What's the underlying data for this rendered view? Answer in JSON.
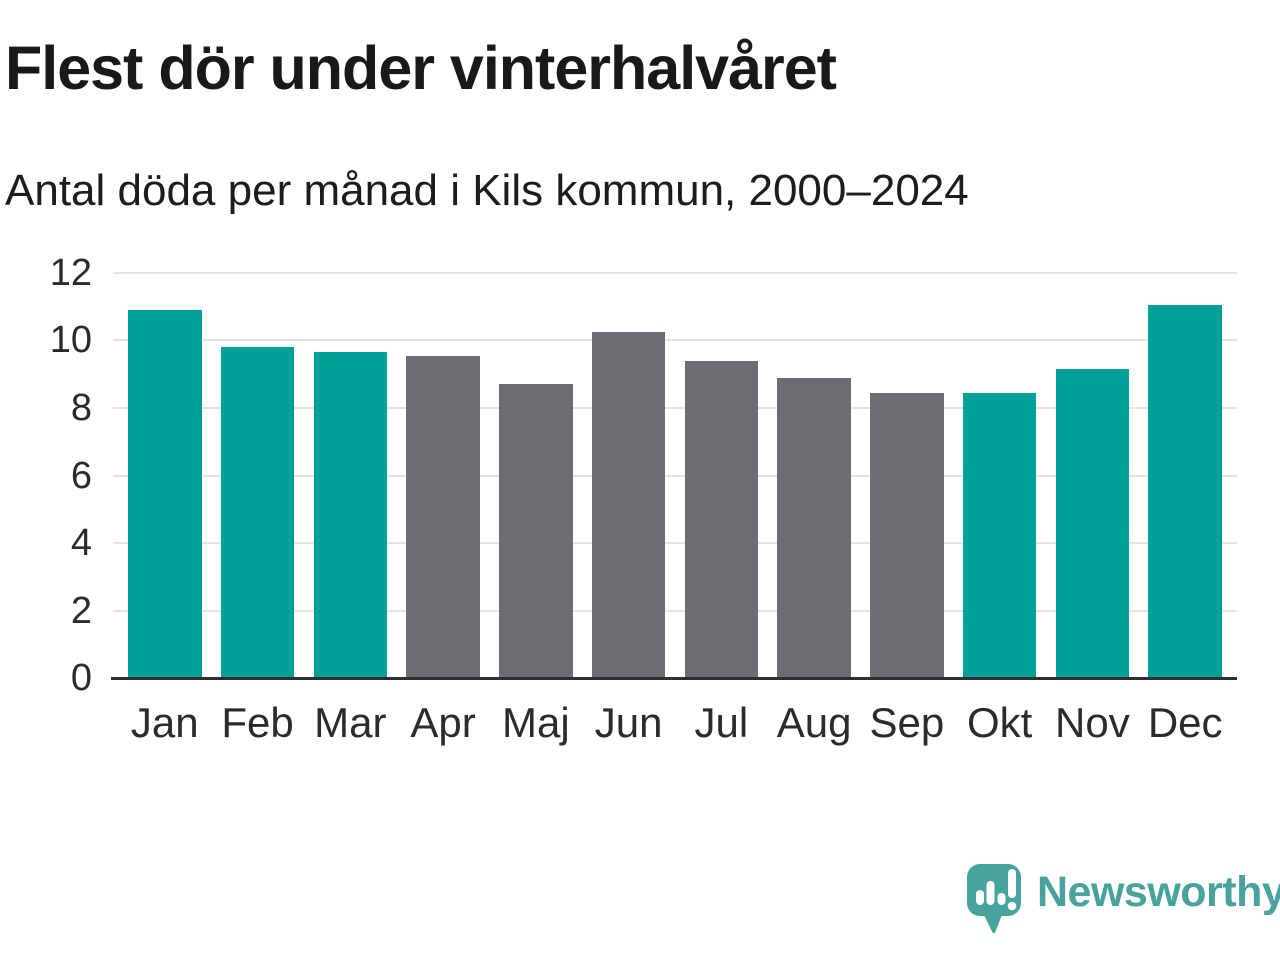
{
  "header": {
    "title": "Flest dör under vinterhalvåret",
    "subtitle": "Antal döda per månad i Kils kommun, 2000–2024"
  },
  "chart_data": {
    "type": "bar",
    "title": "Flest dör under vinterhalvåret",
    "subtitle": "Antal döda per månad i Kils kommun, 2000–2024",
    "categories": [
      "Jan",
      "Feb",
      "Mar",
      "Apr",
      "Maj",
      "Jun",
      "Jul",
      "Aug",
      "Sep",
      "Okt",
      "Nov",
      "Dec"
    ],
    "values": [
      10.9,
      9.8,
      9.65,
      9.55,
      8.7,
      10.25,
      9.4,
      8.9,
      8.45,
      8.45,
      9.15,
      11.05
    ],
    "bar_colors": [
      "#00a099",
      "#00a099",
      "#00a099",
      "#6e6c73",
      "#6e6c73",
      "#6e6c73",
      "#6e6c73",
      "#6e6c73",
      "#6e6c73",
      "#00a099",
      "#00a099",
      "#00a099"
    ],
    "xlabel": "",
    "ylabel": "",
    "ylim": [
      0,
      12
    ],
    "yticks": [
      0,
      2,
      4,
      6,
      8,
      10,
      12
    ],
    "grid": "horizontal",
    "legend": "none",
    "colors": {
      "winter_highlight": "#00a099",
      "summer_neutral": "#6e6c73",
      "gridline": "#e3e3e3",
      "axis_line": "#2f2f33"
    }
  },
  "footer": {
    "brand": "Newsworthy",
    "logo_color": "#48a39c"
  }
}
